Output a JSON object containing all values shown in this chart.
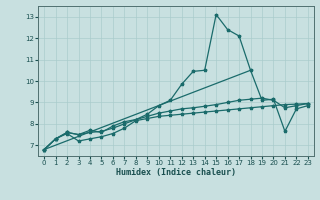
{
  "title": "",
  "xlabel": "Humidex (Indice chaleur)",
  "xlim": [
    -0.5,
    23.5
  ],
  "ylim": [
    6.5,
    13.5
  ],
  "yticks": [
    7,
    8,
    9,
    10,
    11,
    12,
    13
  ],
  "xticks": [
    0,
    1,
    2,
    3,
    4,
    5,
    6,
    7,
    8,
    9,
    10,
    11,
    12,
    13,
    14,
    15,
    16,
    17,
    18,
    19,
    20,
    21,
    22,
    23
  ],
  "bg_color": "#c8e0e0",
  "grid_color": "#aacccc",
  "line_color": "#1a6b6b",
  "line1_x": [
    0,
    1,
    2,
    3,
    4,
    5,
    6,
    7,
    8,
    9,
    10,
    11,
    12,
    13,
    14,
    15,
    16,
    17,
    18,
    19,
    20,
    21,
    22,
    23
  ],
  "line1_y": [
    6.8,
    7.3,
    7.55,
    7.2,
    7.3,
    7.4,
    7.55,
    7.8,
    8.15,
    8.25,
    8.35,
    8.4,
    8.45,
    8.5,
    8.55,
    8.6,
    8.65,
    8.7,
    8.75,
    8.8,
    8.85,
    8.9,
    8.92,
    8.95
  ],
  "line2_x": [
    0,
    1,
    2,
    3,
    4,
    5,
    6,
    7,
    8,
    9,
    10,
    11,
    12,
    13,
    14,
    15,
    16,
    17,
    18,
    19,
    20,
    21,
    22,
    23
  ],
  "line2_y": [
    6.8,
    7.3,
    7.6,
    7.5,
    7.6,
    7.65,
    7.8,
    8.0,
    8.2,
    8.35,
    8.5,
    8.6,
    8.7,
    8.75,
    8.82,
    8.9,
    9.0,
    9.1,
    9.15,
    9.2,
    9.1,
    8.75,
    8.85,
    8.95
  ],
  "line3_x": [
    0,
    1,
    2,
    3,
    4,
    5,
    6,
    7,
    8,
    9,
    10,
    11,
    12,
    13,
    14,
    15,
    16,
    17,
    18,
    19,
    20,
    21,
    22,
    23
  ],
  "line3_y": [
    6.8,
    7.3,
    7.6,
    7.5,
    7.7,
    7.6,
    7.9,
    8.1,
    8.2,
    8.45,
    8.85,
    9.1,
    9.85,
    10.45,
    10.5,
    13.1,
    12.4,
    12.1,
    10.5,
    9.1,
    9.15,
    7.65,
    8.7,
    8.85
  ],
  "line4_x": [
    0,
    18
  ],
  "line4_y": [
    6.8,
    10.5
  ],
  "marker": "*",
  "markersize": 2.5,
  "linewidth": 0.9
}
